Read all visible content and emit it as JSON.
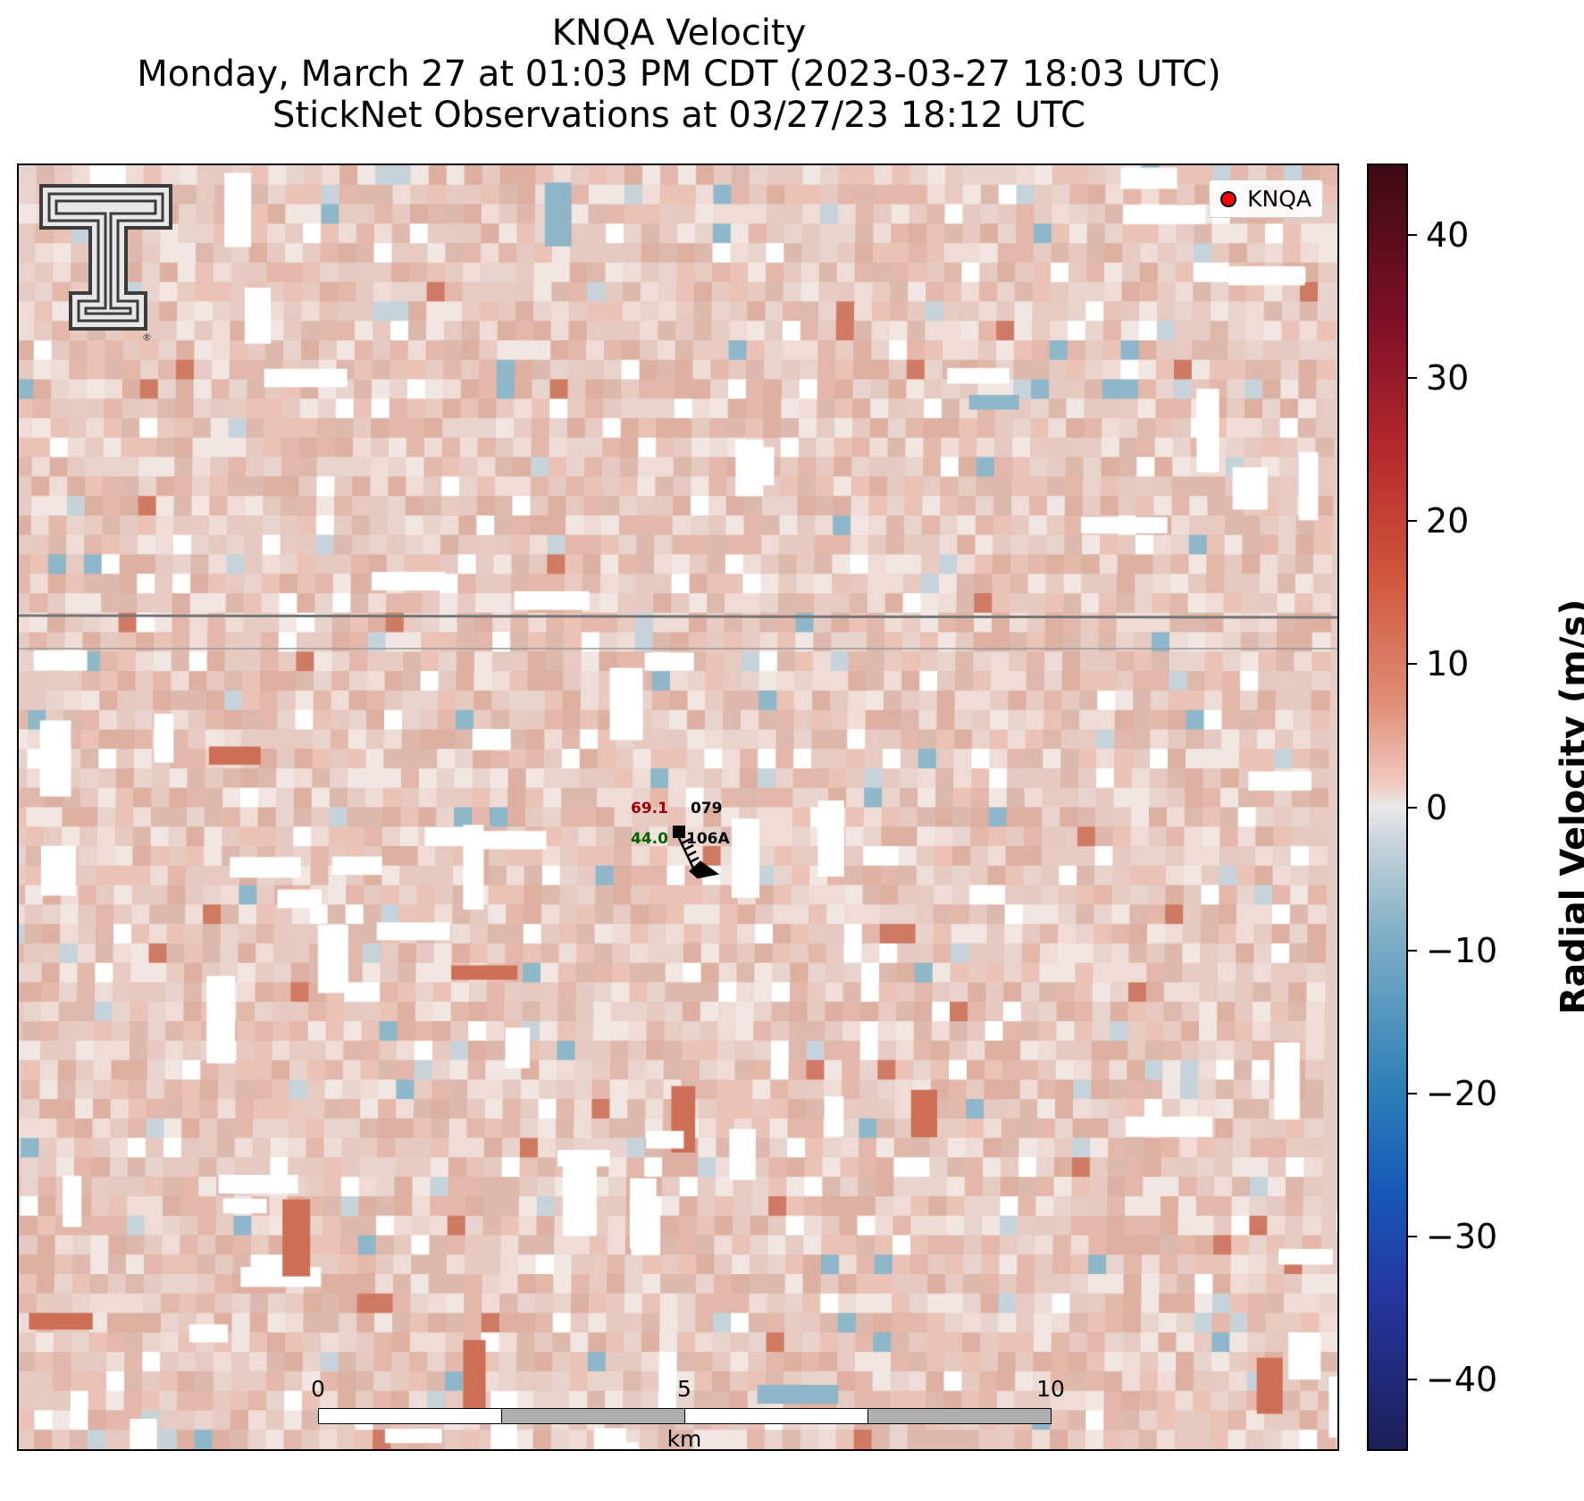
{
  "title": {
    "line1": "KNQA Velocity",
    "line2": "Monday, March 27 at 01:03 PM CDT (2023-03-27 18:03 UTC)",
    "line3": "StickNet Observations at 03/27/23 18:12 UTC"
  },
  "legend": {
    "label": "KNQA",
    "marker_color": "#ff0000"
  },
  "logo": {
    "name": "texas-tech-double-t-logo",
    "mark": "®"
  },
  "stations": [
    {
      "id": "079",
      "value": "69.1",
      "value_color": "#a00000"
    },
    {
      "id": "106A",
      "value": "44.0",
      "value_color": "#006400"
    }
  ],
  "scale_bar": {
    "ticks": [
      "0",
      "5",
      "10"
    ],
    "unit": "km"
  },
  "colorbar": {
    "label": "Radial Velocity (m/s)",
    "min": -45,
    "max": 45,
    "ticks": [
      40,
      30,
      20,
      10,
      0,
      -10,
      -20,
      -30,
      -40
    ],
    "tick_labels": [
      "40",
      "30",
      "20",
      "10",
      "0",
      "−10",
      "−20",
      "−30",
      "−40"
    ],
    "colors": [
      "#3b0a12",
      "#b3282c",
      "#e08f77",
      "#e9e9e9",
      "#7fafc5",
      "#1658b7",
      "#1b1f57"
    ]
  }
}
